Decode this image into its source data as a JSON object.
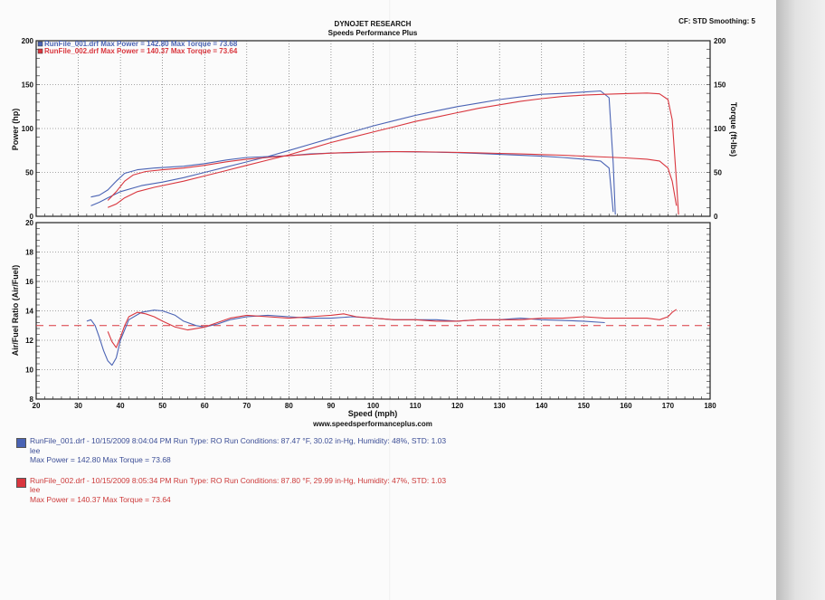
{
  "header": {
    "company": "DYNOJET RESEARCH",
    "shop": "Speeds Performance Plus",
    "settings": "CF: STD  Smoothing: 5",
    "website": "www.speedsperformanceplus.com"
  },
  "colors": {
    "run1": "#4a63b4",
    "run2": "#d9363e",
    "grid": "#555555"
  },
  "legend": [
    "RunFile_001.drf Max Power = 142.80   Max Torque = 73.68",
    "RunFile_002.drf Max Power = 140.37   Max Torque = 73.64"
  ],
  "runs": [
    {
      "line1": "RunFile_001.drf - 10/15/2009 8:04:04 PM  Run Type: RO  Run Conditions: 87.47 °F, 30.02 in-Hg,  Humidity:  48%, STD: 1.03",
      "line2": "lee",
      "line3": "Max Power = 142.80  Max Torque = 73.68"
    },
    {
      "line1": "RunFile_002.drf - 10/15/2009 8:05:34 PM  Run Type: RO  Run Conditions: 87.80 °F, 29.99 in-Hg,  Humidity:  47%, STD: 1.03",
      "line2": "lee",
      "line3": "Max Power = 140.37  Max Torque = 73.64"
    }
  ],
  "chart_data": [
    {
      "type": "line",
      "ylabel": "Power (hp)",
      "ylabel_right": "Torque (ft-lbs)",
      "xlim": [
        20,
        180
      ],
      "ylim": [
        0,
        200
      ],
      "x_ticks": [
        20,
        30,
        40,
        50,
        60,
        70,
        80,
        90,
        100,
        110,
        120,
        130,
        140,
        150,
        160,
        170,
        180
      ],
      "y_ticks": [
        "0",
        "50",
        "100",
        "150",
        "200"
      ],
      "y_ticks_right": [
        "0",
        "50",
        "100",
        "150",
        "200"
      ],
      "grid": true,
      "series": [
        {
          "name": "RunFile_001.drf",
          "role": "power",
          "points": [
            [
              33,
              12
            ],
            [
              35,
              16
            ],
            [
              37,
              21
            ],
            [
              40,
              28
            ],
            [
              45,
              35
            ],
            [
              50,
              39
            ],
            [
              55,
              44
            ],
            [
              60,
              50
            ],
            [
              65,
              56
            ],
            [
              70,
              62
            ],
            [
              75,
              68
            ],
            [
              80,
              75
            ],
            [
              85,
              82
            ],
            [
              90,
              89
            ],
            [
              95,
              96
            ],
            [
              100,
              103
            ],
            [
              105,
              109
            ],
            [
              110,
              115
            ],
            [
              115,
              120
            ],
            [
              120,
              125
            ],
            [
              125,
              129
            ],
            [
              130,
              133
            ],
            [
              135,
              136
            ],
            [
              140,
              139
            ],
            [
              145,
              140
            ],
            [
              150,
              141.5
            ],
            [
              154,
              142.8
            ],
            [
              156,
              135
            ],
            [
              157,
              60
            ],
            [
              157.5,
              2
            ]
          ]
        },
        {
          "name": "RunFile_001.drf",
          "role": "torque",
          "points": [
            [
              33,
              22
            ],
            [
              35,
              24
            ],
            [
              37,
              30
            ],
            [
              39,
              40
            ],
            [
              41,
              49
            ],
            [
              44,
              53
            ],
            [
              48,
              55
            ],
            [
              55,
              57
            ],
            [
              60,
              60
            ],
            [
              65,
              64
            ],
            [
              70,
              67
            ],
            [
              75,
              68
            ],
            [
              80,
              69
            ],
            [
              85,
              71
            ],
            [
              90,
              72
            ],
            [
              95,
              72.5
            ],
            [
              100,
              73.2
            ],
            [
              105,
              73.68
            ],
            [
              110,
              73.4
            ],
            [
              115,
              73
            ],
            [
              120,
              72.5
            ],
            [
              125,
              71.5
            ],
            [
              130,
              70.5
            ],
            [
              135,
              69.5
            ],
            [
              140,
              68.5
            ],
            [
              145,
              67
            ],
            [
              150,
              65
            ],
            [
              154,
              63
            ],
            [
              156,
              55
            ],
            [
              157,
              5
            ]
          ]
        },
        {
          "name": "RunFile_002.drf",
          "role": "power",
          "points": [
            [
              37,
              10
            ],
            [
              39,
              14
            ],
            [
              41,
              21
            ],
            [
              44,
              28
            ],
            [
              48,
              33
            ],
            [
              55,
              40
            ],
            [
              60,
              46
            ],
            [
              65,
              52
            ],
            [
              70,
              58
            ],
            [
              75,
              64
            ],
            [
              80,
              70
            ],
            [
              85,
              77
            ],
            [
              90,
              84
            ],
            [
              95,
              90
            ],
            [
              100,
              96
            ],
            [
              105,
              102
            ],
            [
              110,
              108
            ],
            [
              115,
              113
            ],
            [
              120,
              118
            ],
            [
              125,
              123
            ],
            [
              130,
              127
            ],
            [
              135,
              131
            ],
            [
              140,
              134
            ],
            [
              145,
              136.5
            ],
            [
              150,
              138
            ],
            [
              155,
              139
            ],
            [
              160,
              139.8
            ],
            [
              165,
              140.37
            ],
            [
              168,
              139.5
            ],
            [
              170,
              133
            ],
            [
              171,
              110
            ],
            [
              172,
              40
            ],
            [
              172.5,
              2
            ]
          ]
        },
        {
          "name": "RunFile_002.drf",
          "role": "torque",
          "points": [
            [
              37,
              18
            ],
            [
              39,
              28
            ],
            [
              41,
              40
            ],
            [
              43,
              47
            ],
            [
              46,
              51
            ],
            [
              50,
              53
            ],
            [
              55,
              55
            ],
            [
              60,
              58
            ],
            [
              65,
              62
            ],
            [
              70,
              65
            ],
            [
              75,
              67
            ],
            [
              80,
              69
            ],
            [
              85,
              70.5
            ],
            [
              90,
              72
            ],
            [
              95,
              72.8
            ],
            [
              100,
              73.4
            ],
            [
              105,
              73.64
            ],
            [
              110,
              73.5
            ],
            [
              115,
              73.2
            ],
            [
              120,
              72.8
            ],
            [
              125,
              72.3
            ],
            [
              130,
              71.7
            ],
            [
              135,
              71
            ],
            [
              140,
              70.3
            ],
            [
              145,
              69.6
            ],
            [
              150,
              68.5
            ],
            [
              155,
              67.5
            ],
            [
              160,
              66.5
            ],
            [
              165,
              65
            ],
            [
              168,
              63
            ],
            [
              170,
              55
            ],
            [
              171,
              40
            ],
            [
              172,
              12
            ]
          ]
        }
      ]
    },
    {
      "type": "line",
      "xlabel": "Speed (mph)",
      "ylabel": "Air/Fuel Ratio (Air/Fuel)",
      "xlim": [
        20,
        180
      ],
      "ylim": [
        8,
        20
      ],
      "x_ticks": [
        20,
        30,
        40,
        50,
        60,
        70,
        80,
        90,
        100,
        110,
        120,
        130,
        140,
        150,
        160,
        170,
        180
      ],
      "y_ticks": [
        "8",
        "10",
        "12",
        "14",
        "16",
        "18",
        "20"
      ],
      "reference_line": 13.0,
      "grid": true,
      "series": [
        {
          "name": "RunFile_001.drf",
          "points": [
            [
              32,
              13.3
            ],
            [
              33,
              13.4
            ],
            [
              34,
              13.0
            ],
            [
              35,
              12.2
            ],
            [
              36,
              11.3
            ],
            [
              37,
              10.6
            ],
            [
              38,
              10.3
            ],
            [
              39,
              10.8
            ],
            [
              40,
              12.0
            ],
            [
              42,
              13.4
            ],
            [
              45,
              13.9
            ],
            [
              48,
              14.05
            ],
            [
              50,
              14.0
            ],
            [
              53,
              13.7
            ],
            [
              55,
              13.3
            ],
            [
              58,
              13.0
            ],
            [
              60,
              12.9
            ],
            [
              63,
              13.1
            ],
            [
              66,
              13.4
            ],
            [
              70,
              13.6
            ],
            [
              75,
              13.7
            ],
            [
              80,
              13.6
            ],
            [
              85,
              13.5
            ],
            [
              90,
              13.5
            ],
            [
              95,
              13.6
            ],
            [
              100,
              13.5
            ],
            [
              105,
              13.4
            ],
            [
              110,
              13.4
            ],
            [
              115,
              13.4
            ],
            [
              120,
              13.3
            ],
            [
              125,
              13.4
            ],
            [
              130,
              13.4
            ],
            [
              135,
              13.5
            ],
            [
              140,
              13.4
            ],
            [
              145,
              13.35
            ],
            [
              150,
              13.3
            ],
            [
              155,
              13.2
            ]
          ]
        },
        {
          "name": "RunFile_002.drf",
          "points": [
            [
              37,
              12.6
            ],
            [
              38,
              11.9
            ],
            [
              39,
              11.5
            ],
            [
              40,
              12.2
            ],
            [
              41,
              13.0
            ],
            [
              42,
              13.6
            ],
            [
              44,
              13.9
            ],
            [
              46,
              13.8
            ],
            [
              48,
              13.6
            ],
            [
              50,
              13.3
            ],
            [
              53,
              12.9
            ],
            [
              56,
              12.7
            ],
            [
              60,
              12.9
            ],
            [
              63,
              13.2
            ],
            [
              66,
              13.5
            ],
            [
              70,
              13.7
            ],
            [
              75,
              13.6
            ],
            [
              80,
              13.5
            ],
            [
              85,
              13.6
            ],
            [
              90,
              13.7
            ],
            [
              93,
              13.8
            ],
            [
              96,
              13.6
            ],
            [
              100,
              13.5
            ],
            [
              105,
              13.4
            ],
            [
              110,
              13.4
            ],
            [
              115,
              13.3
            ],
            [
              120,
              13.3
            ],
            [
              125,
              13.4
            ],
            [
              130,
              13.4
            ],
            [
              135,
              13.4
            ],
            [
              140,
              13.5
            ],
            [
              145,
              13.5
            ],
            [
              150,
              13.6
            ],
            [
              155,
              13.5
            ],
            [
              160,
              13.5
            ],
            [
              165,
              13.5
            ],
            [
              168,
              13.4
            ],
            [
              170,
              13.6
            ],
            [
              171,
              13.9
            ],
            [
              172,
              14.1
            ]
          ]
        }
      ]
    }
  ]
}
